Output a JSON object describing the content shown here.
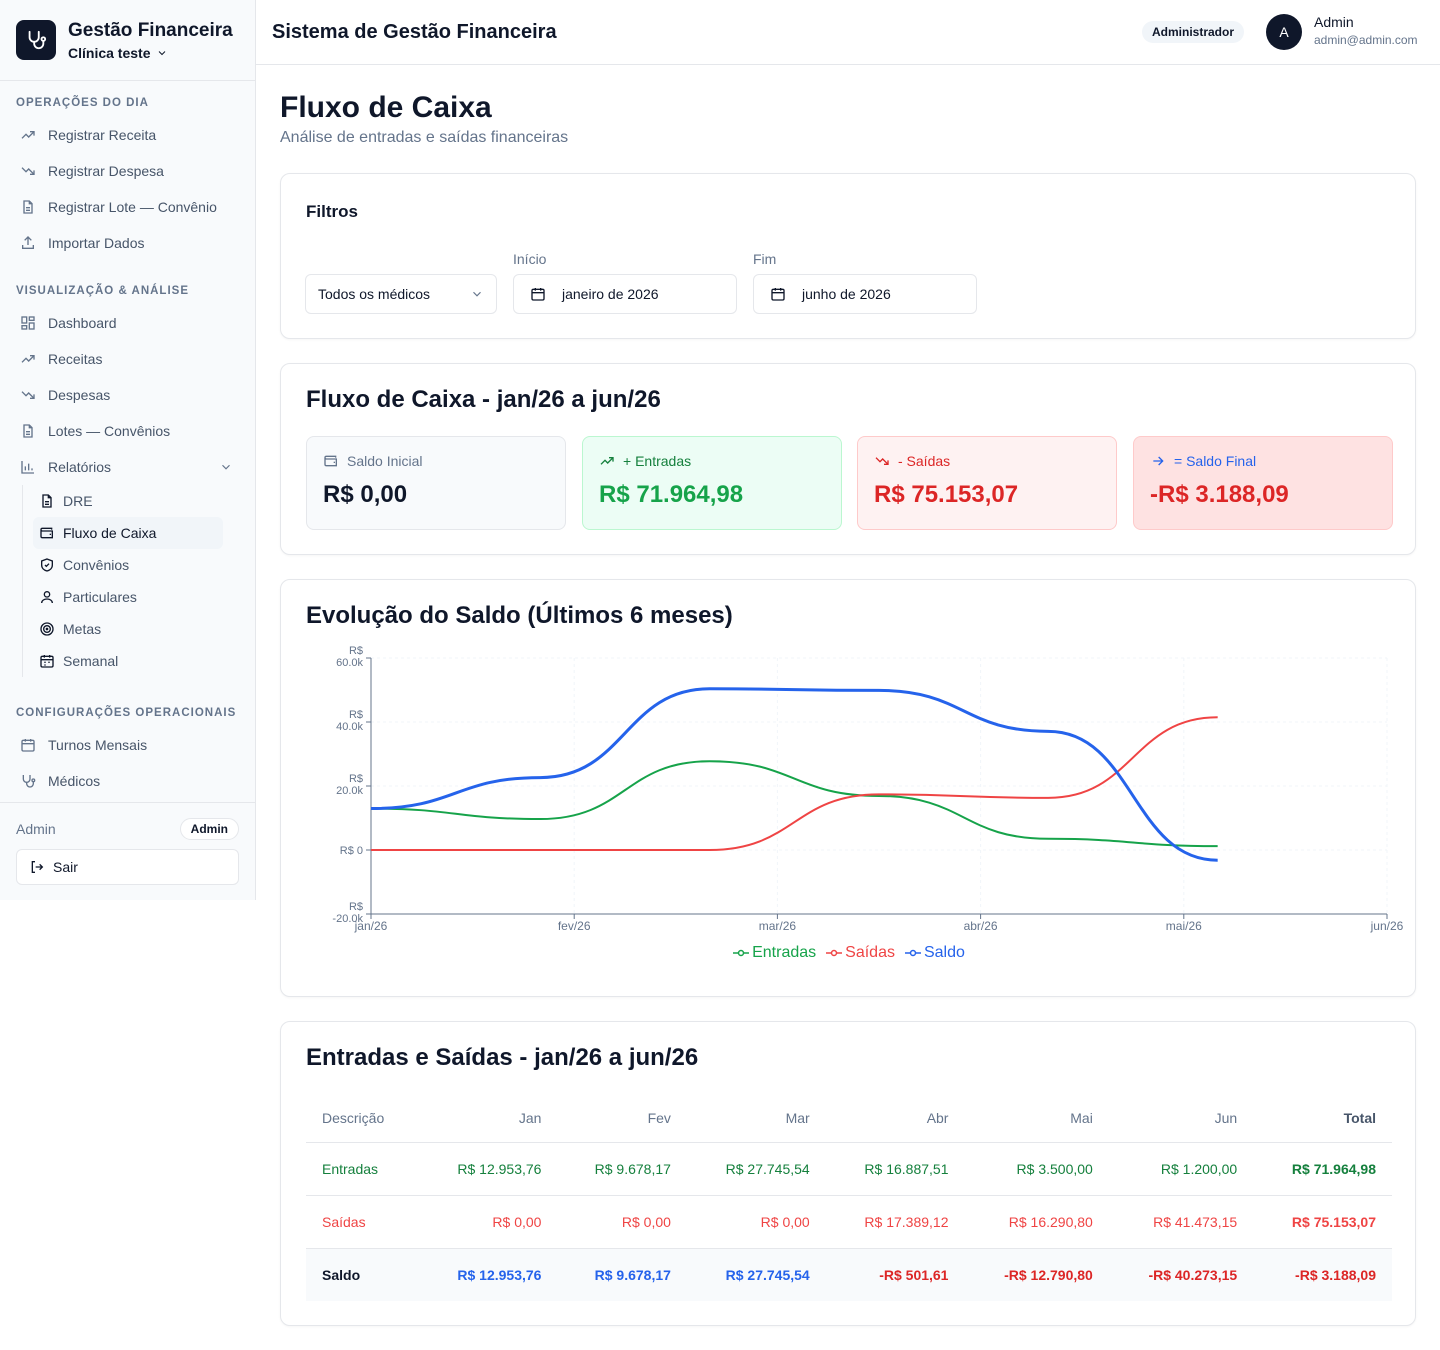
{
  "brand": {
    "title": "Gestão Financeira",
    "clinic": "Clínica teste"
  },
  "sidebar": {
    "sections": [
      {
        "title": "OPERAÇÕES DO DIA",
        "items": [
          {
            "label": "Registrar Receita",
            "icon": "trending-up-icon"
          },
          {
            "label": "Registrar Despesa",
            "icon": "trending-down-icon"
          },
          {
            "label": "Registrar Lote — Convênio",
            "icon": "file-icon"
          },
          {
            "label": "Importar Dados",
            "icon": "upload-icon"
          }
        ]
      },
      {
        "title": "VISUALIZAÇÃO & ANÁLISE",
        "items": [
          {
            "label": "Dashboard",
            "icon": "dashboard-icon"
          },
          {
            "label": "Receitas",
            "icon": "trending-up-icon"
          },
          {
            "label": "Despesas",
            "icon": "trending-down-icon"
          },
          {
            "label": "Lotes — Convênios",
            "icon": "file-icon"
          },
          {
            "label": "Relatórios",
            "icon": "bar-chart-icon"
          }
        ]
      },
      {
        "title": "CONFIGURAÇÕES OPERACIONAIS",
        "items": [
          {
            "label": "Turnos Mensais",
            "icon": "calendar-icon"
          },
          {
            "label": "Médicos",
            "icon": "stethoscope-icon"
          }
        ]
      }
    ],
    "reports": [
      {
        "label": "DRE",
        "icon": "file-text-icon"
      },
      {
        "label": "Fluxo de Caixa",
        "icon": "wallet-icon",
        "active": true
      },
      {
        "label": "Convênios",
        "icon": "shield-icon"
      },
      {
        "label": "Particulares",
        "icon": "user-icon"
      },
      {
        "label": "Metas",
        "icon": "target-icon"
      },
      {
        "label": "Semanal",
        "icon": "calendar-icon"
      }
    ],
    "footer": {
      "user": "Admin",
      "role": "Admin",
      "logout": "Sair"
    }
  },
  "header": {
    "title": "Sistema de Gestão Financeira",
    "role": "Administrador",
    "avatar": "A",
    "user_name": "Admin",
    "user_email": "admin@admin.com"
  },
  "page": {
    "title": "Fluxo de Caixa",
    "subtitle": "Análise de entradas e saídas financeiras"
  },
  "filters": {
    "title": "Filtros",
    "doctor": "Todos os médicos",
    "start_label": "Início",
    "start_value": "janeiro de 2026",
    "end_label": "Fim",
    "end_value": "junho de 2026"
  },
  "summary": {
    "title": "Fluxo de Caixa - jan/26 a jun/26",
    "cards": [
      {
        "label": "Saldo Inicial",
        "value": "R$ 0,00"
      },
      {
        "label": "+ Entradas",
        "value": "R$ 71.964,98"
      },
      {
        "label": "- Saídas",
        "value": "R$ 75.153,07"
      },
      {
        "label": "= Saldo Final",
        "value": "-R$ 3.188,09"
      }
    ]
  },
  "chart_title": "Evolução do Saldo (Últimos 6 meses)",
  "chart_data": {
    "type": "line",
    "categories": [
      "jan/26",
      "fev/26",
      "mar/26",
      "abr/26",
      "mai/26",
      "jun/26"
    ],
    "y_ticks": [
      "R$ 60.0k",
      "R$ 40.0k",
      "R$ 20.0k",
      "R$ 0",
      "R$ -20.0k"
    ],
    "ylim": [
      -20000,
      60000
    ],
    "legend_position": "bottom",
    "series": [
      {
        "name": "Entradas",
        "color": "#16a34a",
        "values": [
          12953.76,
          9678.17,
          27745.54,
          16887.51,
          3500.0,
          1200.0
        ]
      },
      {
        "name": "Saídas",
        "color": "#ef4444",
        "values": [
          0,
          0,
          0,
          17389.12,
          16290.8,
          41473.15
        ]
      },
      {
        "name": "Saldo",
        "color": "#2563eb",
        "values": [
          12953.76,
          22631.93,
          50377.47,
          49875.86,
          37085.06,
          -3188.09
        ]
      }
    ]
  },
  "table": {
    "title": "Entradas e Saídas - jan/26 a jun/26",
    "headers": [
      "Descrição",
      "Jan",
      "Fev",
      "Mar",
      "Abr",
      "Mai",
      "Jun",
      "Total"
    ],
    "rows": [
      {
        "label": "Entradas",
        "values": [
          "R$ 12.953,76",
          "R$ 9.678,17",
          "R$ 27.745,54",
          "R$ 16.887,51",
          "R$ 3.500,00",
          "R$ 1.200,00",
          "R$ 71.964,98"
        ]
      },
      {
        "label": "Saídas",
        "values": [
          "R$ 0,00",
          "R$ 0,00",
          "R$ 0,00",
          "R$ 17.389,12",
          "R$ 16.290,80",
          "R$ 41.473,15",
          "R$ 75.153,07"
        ]
      },
      {
        "label": "Saldo",
        "values": [
          "R$ 12.953,76",
          "R$ 9.678,17",
          "R$ 27.745,54",
          "-R$ 501,61",
          "-R$ 12.790,80",
          "-R$ 40.273,15",
          "-R$ 3.188,09"
        ]
      }
    ]
  }
}
